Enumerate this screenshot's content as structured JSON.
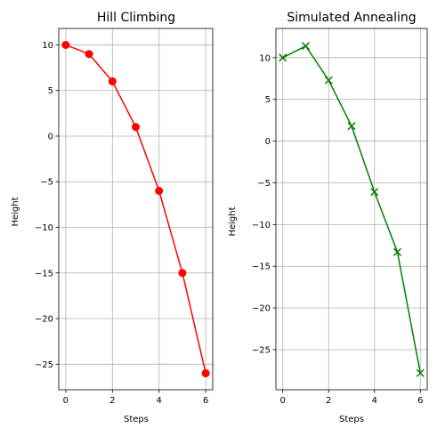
{
  "chart_data": [
    {
      "type": "line",
      "title": "Hill Climbing",
      "xlabel": "Steps",
      "ylabel": "Height",
      "x": [
        0,
        1,
        2,
        3,
        4,
        5,
        6
      ],
      "series": [
        {
          "values": [
            10,
            9,
            6,
            1,
            -6,
            -15,
            -26
          ],
          "color": "#ff0000",
          "marker": "circle"
        }
      ],
      "xlim": [
        -0.3,
        6.3
      ],
      "ylim": [
        -27.8,
        11.8
      ],
      "xticks": [
        0,
        2,
        4,
        6
      ],
      "yticks": [
        10,
        5,
        0,
        -5,
        -10,
        -15,
        -20,
        -25
      ],
      "grid": true
    },
    {
      "type": "line",
      "title": "Simulated Annealing",
      "xlabel": "Steps",
      "ylabel": "Height",
      "x": [
        0,
        1,
        2,
        3,
        4,
        5,
        6
      ],
      "series": [
        {
          "values": [
            10,
            11.4,
            7.3,
            1.8,
            -6.1,
            -13.3,
            -27.8
          ],
          "color": "#008000",
          "marker": "x"
        }
      ],
      "xlim": [
        -0.3,
        6.3
      ],
      "ylim": [
        -29.8,
        13.5
      ],
      "xticks": [
        0,
        2,
        4,
        6
      ],
      "yticks": [
        10,
        5,
        0,
        -5,
        -10,
        -15,
        -20,
        -25
      ],
      "grid": true
    }
  ]
}
